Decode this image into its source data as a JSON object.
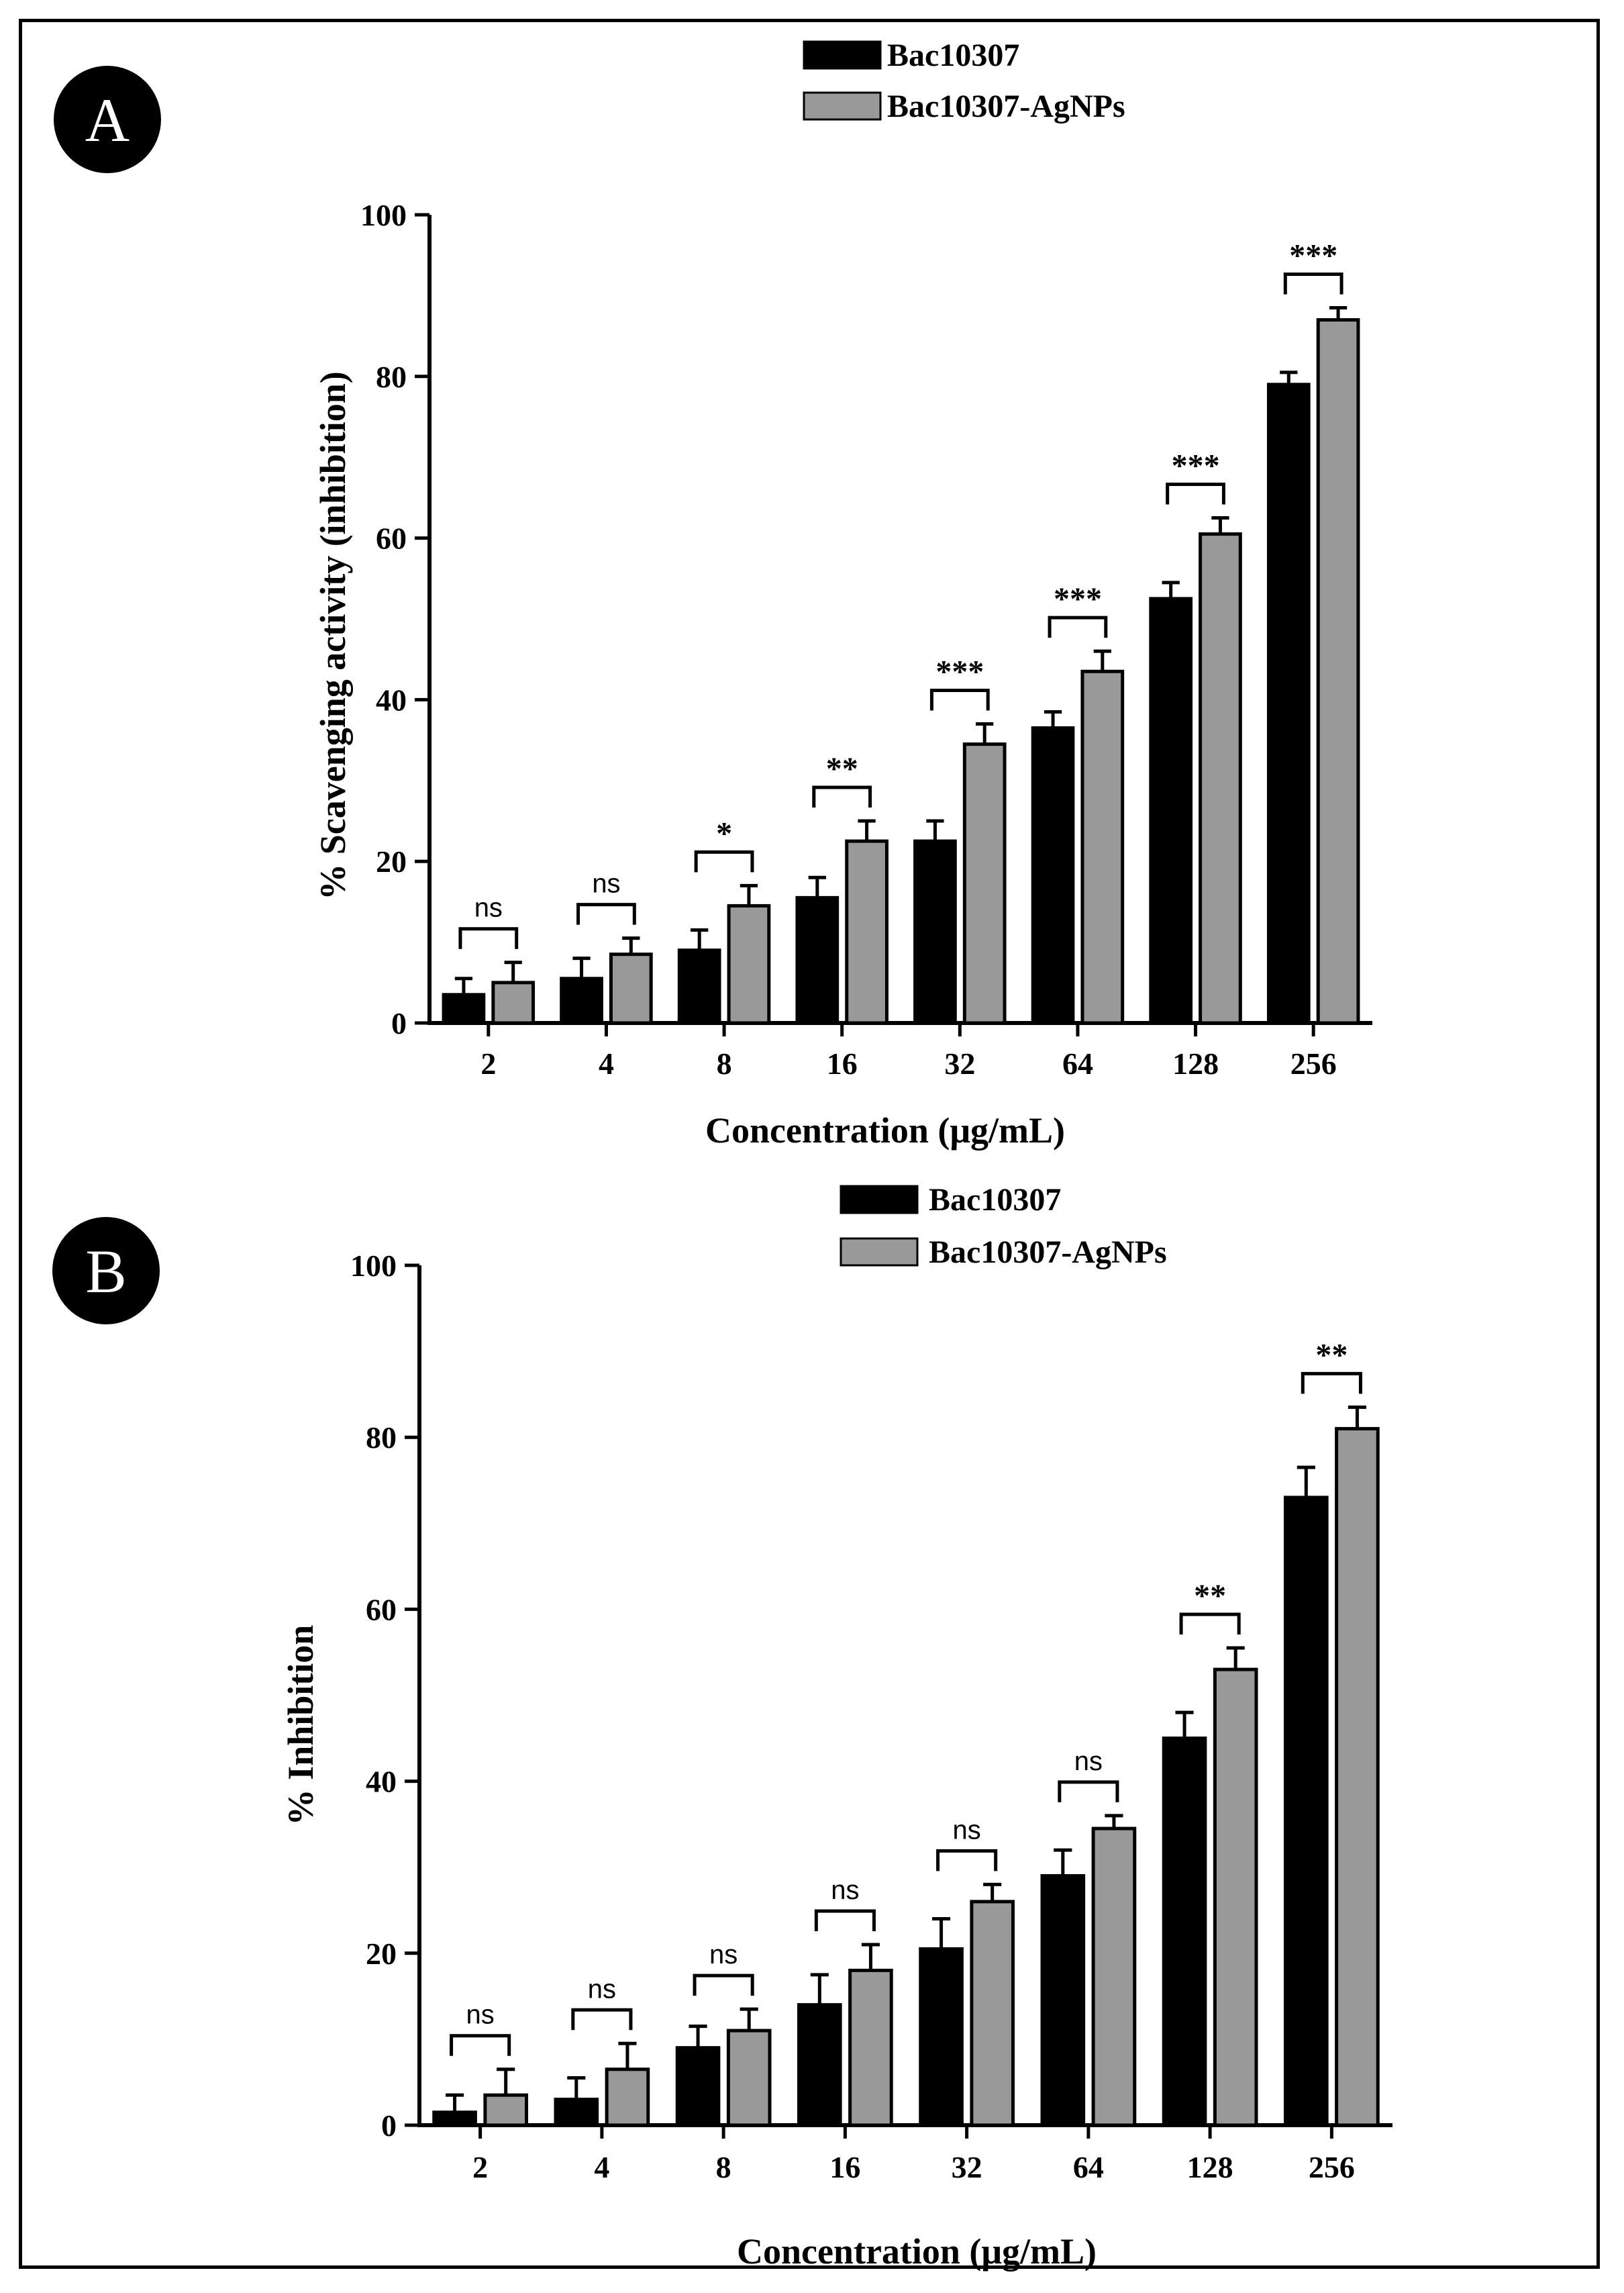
{
  "figure": {
    "colors": {
      "series1": "#000000",
      "series2": "#999999",
      "text": "#000000"
    }
  },
  "chart_data": [
    {
      "panel": "A",
      "type": "bar",
      "ylabel": "% Scavenging activity (inhibition)",
      "xlabel": "Concentration (μg/mL)",
      "ylim": [
        0,
        100
      ],
      "yticks": [
        "0",
        "20",
        "40",
        "60",
        "80",
        "100"
      ],
      "categories": [
        "2",
        "4",
        "8",
        "16",
        "32",
        "64",
        "128",
        "256"
      ],
      "legend_position": "top-center",
      "grid": false,
      "series": [
        {
          "name": "Bac10307",
          "values": [
            3.5,
            5.5,
            9,
            15.5,
            22.5,
            36.5,
            52.5,
            79
          ],
          "errors": [
            2,
            2.5,
            2.5,
            2.5,
            2.5,
            2,
            2,
            1.5
          ]
        },
        {
          "name": "Bac10307-AgNPs",
          "values": [
            5,
            8.5,
            14.5,
            22.5,
            34.5,
            43.5,
            60.5,
            87
          ],
          "errors": [
            2.5,
            2,
            2.5,
            2.5,
            2.5,
            2.5,
            2,
            1.5
          ]
        }
      ],
      "significance": [
        "ns",
        "ns",
        "*",
        "**",
        "***",
        "***",
        "***",
        "***"
      ]
    },
    {
      "panel": "B",
      "type": "bar",
      "ylabel": "% Inhibition",
      "xlabel": "Concentration (μg/mL)",
      "ylim": [
        0,
        100
      ],
      "yticks": [
        "0",
        "20",
        "40",
        "60",
        "80",
        "100"
      ],
      "categories": [
        "2",
        "4",
        "8",
        "16",
        "32",
        "64",
        "128",
        "256"
      ],
      "legend_position": "top-center",
      "grid": false,
      "series": [
        {
          "name": "Bac10307",
          "values": [
            1.5,
            3,
            9,
            14,
            20.5,
            29,
            45,
            73
          ],
          "errors": [
            2,
            2.5,
            2.5,
            3.5,
            3.5,
            3,
            3,
            3.5
          ]
        },
        {
          "name": "Bac10307-AgNPs",
          "values": [
            3.5,
            6.5,
            11,
            18,
            26,
            34.5,
            53,
            81
          ],
          "errors": [
            3,
            3,
            2.5,
            3,
            2,
            1.5,
            2.5,
            2.5
          ]
        }
      ],
      "significance": [
        "ns",
        "ns",
        "ns",
        "ns",
        "ns",
        "ns",
        "**",
        "**"
      ]
    }
  ]
}
